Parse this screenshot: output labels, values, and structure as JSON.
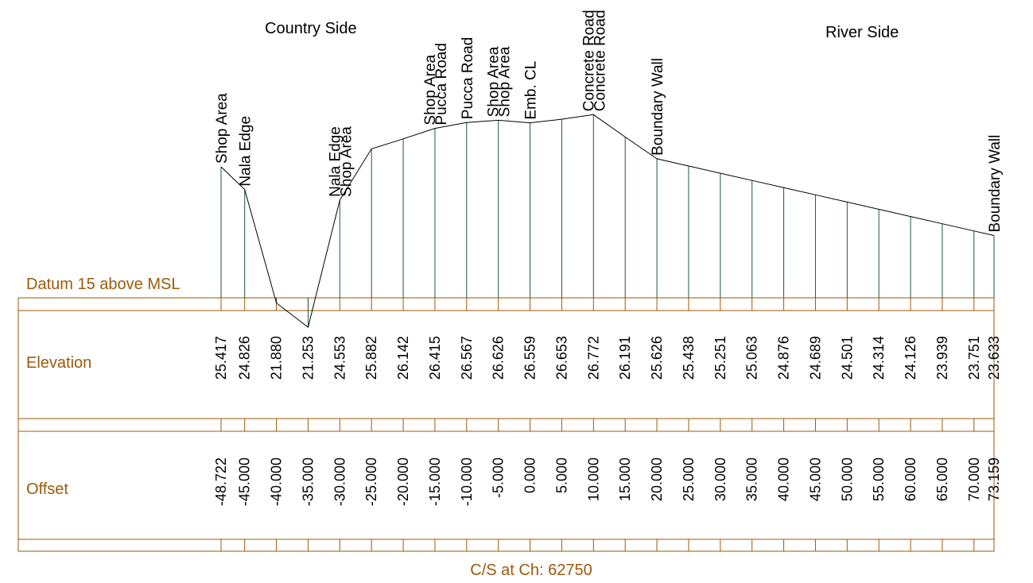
{
  "header": {
    "left_side": "Country Side",
    "right_side": "River Side"
  },
  "rows": {
    "datum": "Datum 15 above MSL",
    "elevation": "Elevation",
    "offset": "Offset"
  },
  "caption": "C/S at Ch: 62750",
  "colors": {
    "band": "#9b5a0a",
    "stations": "#1e5a3a",
    "profile": "#000000"
  },
  "chart_data": {
    "type": "line",
    "datum": 15,
    "points": [
      {
        "offset": "-48.722",
        "elevation": "25.417",
        "labels": [
          "Shop Area"
        ]
      },
      {
        "offset": "-45.000",
        "elevation": "24.826",
        "labels": [
          "Nala Edge"
        ]
      },
      {
        "offset": "-40.000",
        "elevation": "21.880",
        "labels": []
      },
      {
        "offset": "-35.000",
        "elevation": "21.253",
        "labels": []
      },
      {
        "offset": "-30.000",
        "elevation": "24.553",
        "labels": [
          "Nala Edge",
          "Shop Area"
        ]
      },
      {
        "offset": "-25.000",
        "elevation": "25.882",
        "labels": []
      },
      {
        "offset": "-20.000",
        "elevation": "26.142",
        "labels": []
      },
      {
        "offset": "-15.000",
        "elevation": "26.415",
        "labels": [
          "Shop Area",
          "Pucca Road"
        ]
      },
      {
        "offset": "-10.000",
        "elevation": "26.567",
        "labels": [
          "Pucca Road"
        ]
      },
      {
        "offset": "-5.000",
        "elevation": "26.626",
        "labels": [
          "Shop Area",
          "Shop Area"
        ]
      },
      {
        "offset": "0.000",
        "elevation": "26.559",
        "labels": [
          "Emb. CL"
        ]
      },
      {
        "offset": "5.000",
        "elevation": "26.653",
        "labels": []
      },
      {
        "offset": "10.000",
        "elevation": "26.772",
        "labels": [
          "Concrete Road",
          "Concrete Road"
        ]
      },
      {
        "offset": "15.000",
        "elevation": "26.191",
        "labels": []
      },
      {
        "offset": "20.000",
        "elevation": "25.626",
        "labels": [
          "Boundary Wall"
        ]
      },
      {
        "offset": "25.000",
        "elevation": "25.438",
        "labels": []
      },
      {
        "offset": "30.000",
        "elevation": "25.251",
        "labels": []
      },
      {
        "offset": "35.000",
        "elevation": "25.063",
        "labels": []
      },
      {
        "offset": "40.000",
        "elevation": "24.876",
        "labels": []
      },
      {
        "offset": "45.000",
        "elevation": "24.689",
        "labels": []
      },
      {
        "offset": "50.000",
        "elevation": "24.501",
        "labels": []
      },
      {
        "offset": "55.000",
        "elevation": "24.314",
        "labels": []
      },
      {
        "offset": "60.000",
        "elevation": "24.126",
        "labels": []
      },
      {
        "offset": "65.000",
        "elevation": "23.939",
        "labels": []
      },
      {
        "offset": "70.000",
        "elevation": "23.751",
        "labels": []
      },
      {
        "offset": "73.159",
        "elevation": "23.633",
        "labels": [
          "Boundary Wall"
        ]
      }
    ]
  }
}
